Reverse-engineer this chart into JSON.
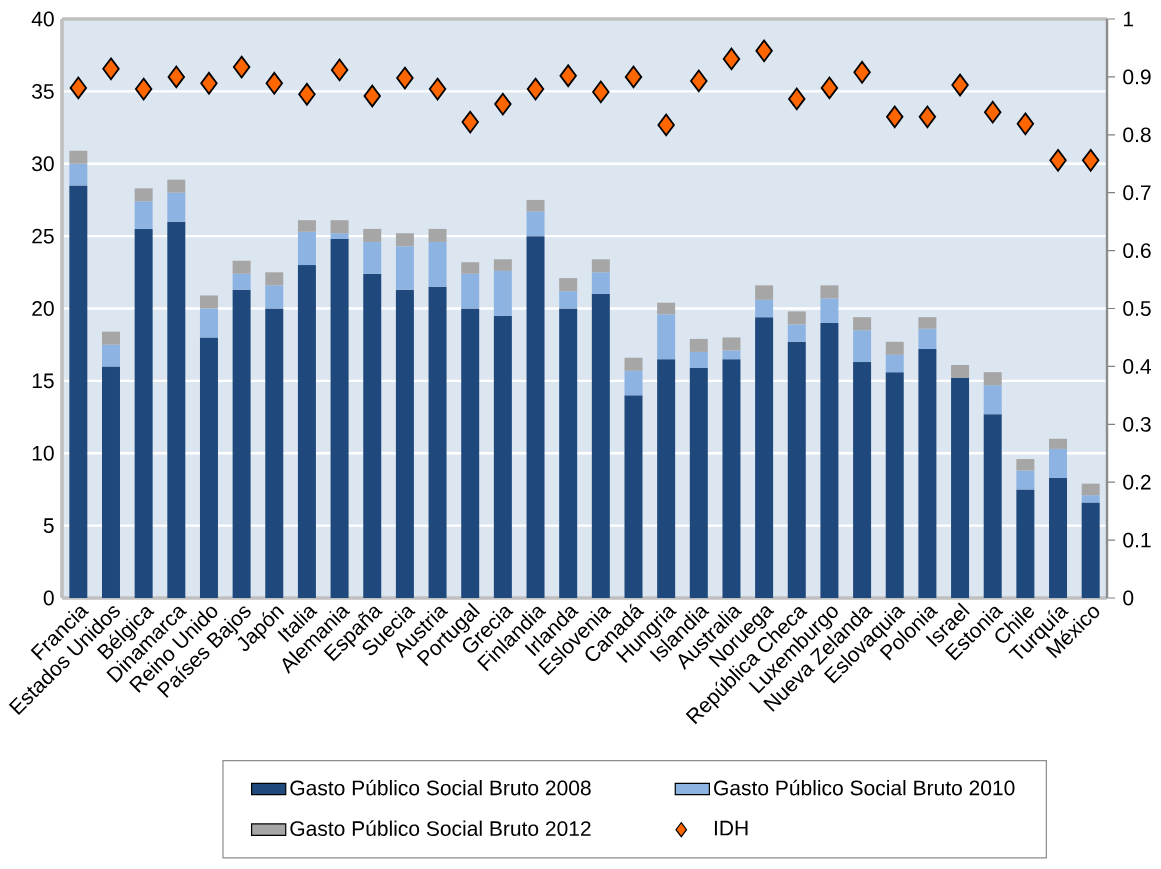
{
  "chart_data": {
    "type": "bar",
    "stacked": true,
    "categories": [
      "Francia",
      "Estados Unidos",
      "Bélgica",
      "Dinamarca",
      "Reino Unido",
      "Países Bajos",
      "Japón",
      "Italia",
      "Alemania",
      "España",
      "Suecia",
      "Austria",
      "Portugal",
      "Grecia",
      "Finlandia",
      "Irlanda",
      "Eslovenia",
      "Canadá",
      "Hungria",
      "Islandia",
      "Australia",
      "Noruega",
      "República Checa",
      "Luxemburgo",
      "Nueva Zelanda",
      "Eslovaquia",
      "Polonia",
      "Israel",
      "Estonia",
      "Chile",
      "Turquía",
      "México"
    ],
    "series": [
      {
        "name": "Gasto Público Social Bruto 2008",
        "color": "#1f497d",
        "values": [
          28.5,
          16.0,
          25.5,
          26.0,
          18.0,
          21.3,
          20.0,
          23.0,
          24.8,
          22.4,
          21.3,
          21.5,
          20.0,
          19.5,
          25.0,
          20.0,
          21.0,
          14.0,
          16.5,
          15.9,
          16.5,
          19.4,
          17.7,
          19.0,
          16.3,
          15.6,
          17.2,
          15.2,
          12.7,
          7.5,
          8.3,
          6.6
        ]
      },
      {
        "name": "Gasto Público Social Bruto 2010",
        "color": "#8db3e2",
        "values": [
          1.5,
          1.5,
          1.9,
          2.0,
          2.0,
          1.1,
          1.6,
          2.3,
          0.4,
          2.2,
          3.0,
          3.1,
          2.4,
          3.1,
          1.7,
          1.2,
          1.5,
          1.7,
          3.1,
          1.1,
          0.6,
          1.2,
          1.2,
          1.7,
          2.2,
          1.2,
          1.4,
          0.0,
          2.0,
          1.3,
          2.0,
          0.5
        ]
      },
      {
        "name": "Gasto Público Social Bruto 2012",
        "color": "#a6a6a6",
        "values": [
          0.9,
          0.9,
          0.9,
          0.9,
          0.9,
          0.9,
          0.9,
          0.8,
          0.9,
          0.9,
          0.9,
          0.9,
          0.8,
          0.8,
          0.8,
          0.9,
          0.9,
          0.9,
          0.8,
          0.9,
          0.9,
          1.0,
          0.9,
          0.9,
          0.9,
          0.9,
          0.8,
          0.9,
          0.9,
          0.8,
          0.7,
          0.8
        ]
      },
      {
        "name": "IDH",
        "type": "scatter",
        "axis": "y2",
        "marker": "diamond",
        "color": "#ff6600",
        "values": [
          0.881,
          0.914,
          0.879,
          0.9,
          0.889,
          0.917,
          0.889,
          0.87,
          0.912,
          0.867,
          0.898,
          0.879,
          0.822,
          0.853,
          0.879,
          0.902,
          0.874,
          0.9,
          0.817,
          0.893,
          0.931,
          0.945,
          0.862,
          0.881,
          0.908,
          0.831,
          0.831,
          0.886,
          0.839,
          0.819,
          0.756,
          0.756
        ]
      }
    ],
    "ylim": [
      0,
      40
    ],
    "yticks": [
      0,
      5,
      10,
      15,
      20,
      25,
      30,
      35,
      40
    ],
    "y2lim": [
      0,
      1
    ],
    "y2ticks": [
      0,
      0.1,
      0.2,
      0.3,
      0.4,
      0.5,
      0.6,
      0.7,
      0.8,
      0.9,
      1
    ],
    "grid": "y",
    "legend": "bottom"
  }
}
